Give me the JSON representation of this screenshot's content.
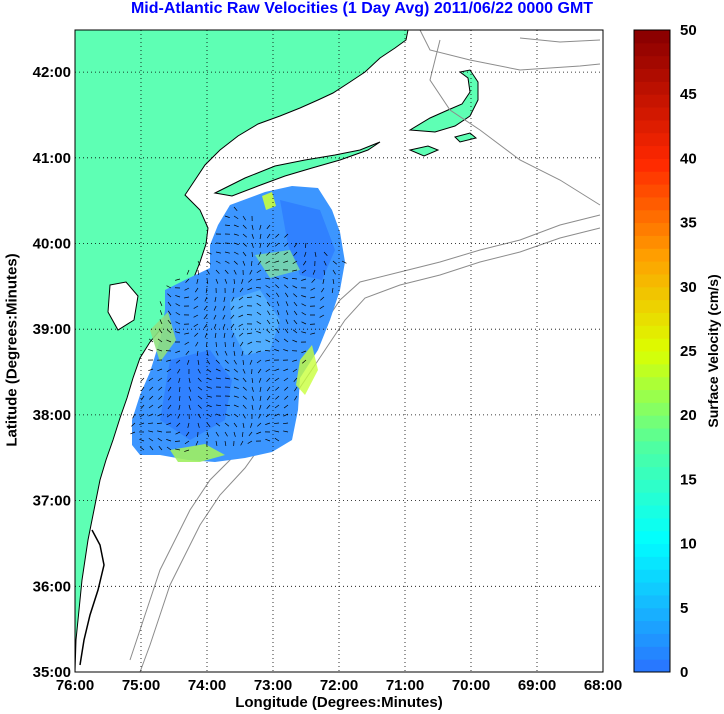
{
  "title": "Mid-Atlantic Raw Velocities (1 Day Avg) 2011/06/22 0000 GMT",
  "xlabel": "Longitude (Degrees:Minutes)",
  "ylabel": "Latitude (Degrees:Minutes)",
  "colorbar": {
    "label": "Surface Velocity (cm/s)",
    "min": 0,
    "max": 50,
    "ticks": [
      "0",
      "5",
      "10",
      "15",
      "20",
      "25",
      "30",
      "35",
      "40",
      "45",
      "50"
    ]
  },
  "axes": {
    "x_ticks": [
      "76:00",
      "75:00",
      "74:00",
      "73:00",
      "72:00",
      "71:00",
      "70:00",
      "69:00",
      "68:00"
    ],
    "y_ticks": [
      "42:00",
      "41:00",
      "40:00",
      "39:00",
      "38:00",
      "37:00",
      "36:00",
      "35:00"
    ],
    "grid": "dotted"
  },
  "colors": {
    "title": "#0000ff",
    "land": "#5effb4",
    "coast_outline": "#000000",
    "bathymetry": "#8c8c8c",
    "current_field_low": "#3c96ff",
    "current_field_high": "#c8ff3c"
  }
}
